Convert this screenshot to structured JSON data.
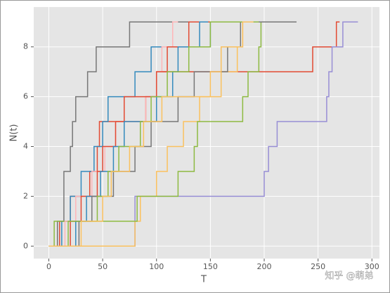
{
  "chart_data": {
    "type": "step",
    "x_label": "T",
    "y_label": "N(t)",
    "annotation": "知乎 @萌弟",
    "xlim": [
      -14,
      307
    ],
    "ylim": [
      -0.5,
      9.6
    ],
    "xticks": [
      0,
      50,
      100,
      150,
      200,
      250,
      300
    ],
    "yticks": [
      0,
      2,
      4,
      6,
      8
    ],
    "grid": true,
    "series": [
      {
        "color": "#E24A33",
        "x": [
          0,
          10,
          20,
          38,
          45,
          47,
          90,
          100,
          245,
          267,
          270
        ],
        "values": [
          0,
          1,
          2,
          3,
          4,
          5,
          6,
          7,
          8,
          9,
          9
        ]
      },
      {
        "color": "#348ABD",
        "x": [
          0,
          12,
          20,
          30,
          42,
          50,
          55,
          80,
          95,
          150,
          160
        ],
        "values": [
          0,
          1,
          2,
          3,
          4,
          5,
          6,
          7,
          8,
          9,
          9
        ]
      },
      {
        "color": "#988ED5",
        "x": [
          0,
          80,
          200,
          204,
          212,
          258,
          260,
          263,
          273,
          287
        ],
        "values": [
          0,
          2,
          3,
          4,
          5,
          6,
          7,
          8,
          9,
          9
        ]
      },
      {
        "color": "#777777",
        "x": [
          0,
          8,
          14,
          20,
          22,
          25,
          36,
          44,
          75,
          229
        ],
        "values": [
          0,
          1,
          3,
          4,
          5,
          6,
          7,
          8,
          9,
          9
        ]
      },
      {
        "color": "#FBC15E",
        "x": [
          0,
          80,
          85,
          100,
          110,
          125,
          140,
          160,
          175,
          180,
          195
        ],
        "values": [
          0,
          1,
          2,
          3,
          4,
          5,
          6,
          7,
          8,
          9,
          9
        ]
      },
      {
        "color": "#8EBA42",
        "x": [
          0,
          5,
          82,
          120,
          135,
          138,
          180,
          185,
          195,
          197,
          200
        ],
        "values": [
          0,
          1,
          2,
          3,
          4,
          5,
          6,
          7,
          8,
          9,
          9
        ]
      },
      {
        "color": "#FFB5B8",
        "x": [
          0,
          15,
          25,
          40,
          52,
          62,
          90,
          100,
          105,
          115,
          120
        ],
        "values": [
          0,
          1,
          2,
          3,
          4,
          5,
          6,
          7,
          8,
          9,
          9
        ]
      },
      {
        "color": "#E24A33",
        "x": [
          0,
          20,
          30,
          45,
          50,
          62,
          70,
          100,
          110,
          130,
          160
        ],
        "values": [
          0,
          1,
          2,
          3,
          4,
          5,
          6,
          7,
          8,
          9,
          9
        ]
      },
      {
        "color": "#348ABD",
        "x": [
          0,
          25,
          35,
          48,
          60,
          70,
          100,
          115,
          120,
          140,
          148
        ],
        "values": [
          0,
          1,
          2,
          3,
          4,
          5,
          6,
          7,
          8,
          9,
          9
        ]
      },
      {
        "color": "#777777",
        "x": [
          0,
          28,
          40,
          60,
          80,
          95,
          120,
          135,
          166,
          178,
          230
        ],
        "values": [
          0,
          1,
          2,
          3,
          4,
          5,
          6,
          7,
          8,
          9,
          9
        ]
      },
      {
        "color": "#8EBA42",
        "x": [
          0,
          18,
          45,
          55,
          65,
          85,
          95,
          110,
          130,
          150,
          195
        ],
        "values": [
          0,
          1,
          2,
          3,
          4,
          5,
          6,
          7,
          8,
          9,
          9
        ]
      },
      {
        "color": "#FBC15E",
        "x": [
          0,
          30,
          50,
          58,
          75,
          88,
          105,
          150,
          160,
          180,
          190
        ],
        "values": [
          0,
          1,
          2,
          3,
          4,
          5,
          6,
          7,
          8,
          9,
          9
        ]
      }
    ]
  }
}
